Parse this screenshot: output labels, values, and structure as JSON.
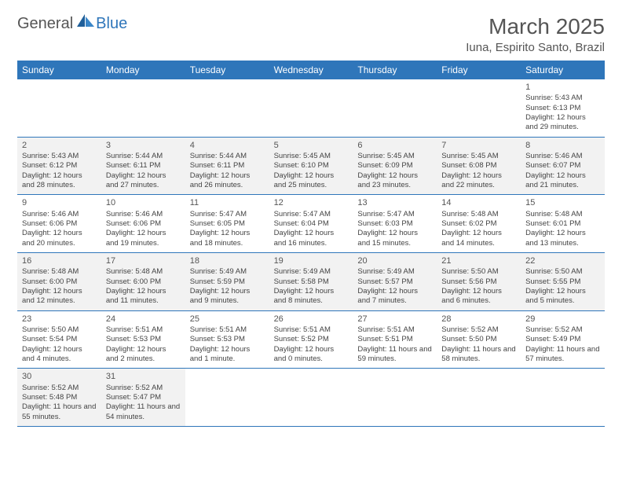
{
  "logo": {
    "text1": "General",
    "text2": "Blue"
  },
  "colors": {
    "header_blue": "#2f76ba",
    "shade_gray": "#f2f2f2",
    "text_gray": "#555555"
  },
  "title": "March 2025",
  "location": "Iuna, Espirito Santo, Brazil",
  "dayHeaders": [
    "Sunday",
    "Monday",
    "Tuesday",
    "Wednesday",
    "Thursday",
    "Friday",
    "Saturday"
  ],
  "weeks": [
    [
      {
        "blank": true
      },
      {
        "blank": true
      },
      {
        "blank": true
      },
      {
        "blank": true
      },
      {
        "blank": true
      },
      {
        "blank": true
      },
      {
        "day": "1",
        "sunrise": "Sunrise: 5:43 AM",
        "sunset": "Sunset: 6:13 PM",
        "daylight": "Daylight: 12 hours and 29 minutes."
      }
    ],
    [
      {
        "day": "2",
        "sunrise": "Sunrise: 5:43 AM",
        "sunset": "Sunset: 6:12 PM",
        "daylight": "Daylight: 12 hours and 28 minutes.",
        "shaded": true
      },
      {
        "day": "3",
        "sunrise": "Sunrise: 5:44 AM",
        "sunset": "Sunset: 6:11 PM",
        "daylight": "Daylight: 12 hours and 27 minutes.",
        "shaded": true
      },
      {
        "day": "4",
        "sunrise": "Sunrise: 5:44 AM",
        "sunset": "Sunset: 6:11 PM",
        "daylight": "Daylight: 12 hours and 26 minutes.",
        "shaded": true
      },
      {
        "day": "5",
        "sunrise": "Sunrise: 5:45 AM",
        "sunset": "Sunset: 6:10 PM",
        "daylight": "Daylight: 12 hours and 25 minutes.",
        "shaded": true
      },
      {
        "day": "6",
        "sunrise": "Sunrise: 5:45 AM",
        "sunset": "Sunset: 6:09 PM",
        "daylight": "Daylight: 12 hours and 23 minutes.",
        "shaded": true
      },
      {
        "day": "7",
        "sunrise": "Sunrise: 5:45 AM",
        "sunset": "Sunset: 6:08 PM",
        "daylight": "Daylight: 12 hours and 22 minutes.",
        "shaded": true
      },
      {
        "day": "8",
        "sunrise": "Sunrise: 5:46 AM",
        "sunset": "Sunset: 6:07 PM",
        "daylight": "Daylight: 12 hours and 21 minutes.",
        "shaded": true
      }
    ],
    [
      {
        "day": "9",
        "sunrise": "Sunrise: 5:46 AM",
        "sunset": "Sunset: 6:06 PM",
        "daylight": "Daylight: 12 hours and 20 minutes."
      },
      {
        "day": "10",
        "sunrise": "Sunrise: 5:46 AM",
        "sunset": "Sunset: 6:06 PM",
        "daylight": "Daylight: 12 hours and 19 minutes."
      },
      {
        "day": "11",
        "sunrise": "Sunrise: 5:47 AM",
        "sunset": "Sunset: 6:05 PM",
        "daylight": "Daylight: 12 hours and 18 minutes."
      },
      {
        "day": "12",
        "sunrise": "Sunrise: 5:47 AM",
        "sunset": "Sunset: 6:04 PM",
        "daylight": "Daylight: 12 hours and 16 minutes."
      },
      {
        "day": "13",
        "sunrise": "Sunrise: 5:47 AM",
        "sunset": "Sunset: 6:03 PM",
        "daylight": "Daylight: 12 hours and 15 minutes."
      },
      {
        "day": "14",
        "sunrise": "Sunrise: 5:48 AM",
        "sunset": "Sunset: 6:02 PM",
        "daylight": "Daylight: 12 hours and 14 minutes."
      },
      {
        "day": "15",
        "sunrise": "Sunrise: 5:48 AM",
        "sunset": "Sunset: 6:01 PM",
        "daylight": "Daylight: 12 hours and 13 minutes."
      }
    ],
    [
      {
        "day": "16",
        "sunrise": "Sunrise: 5:48 AM",
        "sunset": "Sunset: 6:00 PM",
        "daylight": "Daylight: 12 hours and 12 minutes.",
        "shaded": true
      },
      {
        "day": "17",
        "sunrise": "Sunrise: 5:48 AM",
        "sunset": "Sunset: 6:00 PM",
        "daylight": "Daylight: 12 hours and 11 minutes.",
        "shaded": true
      },
      {
        "day": "18",
        "sunrise": "Sunrise: 5:49 AM",
        "sunset": "Sunset: 5:59 PM",
        "daylight": "Daylight: 12 hours and 9 minutes.",
        "shaded": true
      },
      {
        "day": "19",
        "sunrise": "Sunrise: 5:49 AM",
        "sunset": "Sunset: 5:58 PM",
        "daylight": "Daylight: 12 hours and 8 minutes.",
        "shaded": true
      },
      {
        "day": "20",
        "sunrise": "Sunrise: 5:49 AM",
        "sunset": "Sunset: 5:57 PM",
        "daylight": "Daylight: 12 hours and 7 minutes.",
        "shaded": true
      },
      {
        "day": "21",
        "sunrise": "Sunrise: 5:50 AM",
        "sunset": "Sunset: 5:56 PM",
        "daylight": "Daylight: 12 hours and 6 minutes.",
        "shaded": true
      },
      {
        "day": "22",
        "sunrise": "Sunrise: 5:50 AM",
        "sunset": "Sunset: 5:55 PM",
        "daylight": "Daylight: 12 hours and 5 minutes.",
        "shaded": true
      }
    ],
    [
      {
        "day": "23",
        "sunrise": "Sunrise: 5:50 AM",
        "sunset": "Sunset: 5:54 PM",
        "daylight": "Daylight: 12 hours and 4 minutes."
      },
      {
        "day": "24",
        "sunrise": "Sunrise: 5:51 AM",
        "sunset": "Sunset: 5:53 PM",
        "daylight": "Daylight: 12 hours and 2 minutes."
      },
      {
        "day": "25",
        "sunrise": "Sunrise: 5:51 AM",
        "sunset": "Sunset: 5:53 PM",
        "daylight": "Daylight: 12 hours and 1 minute."
      },
      {
        "day": "26",
        "sunrise": "Sunrise: 5:51 AM",
        "sunset": "Sunset: 5:52 PM",
        "daylight": "Daylight: 12 hours and 0 minutes."
      },
      {
        "day": "27",
        "sunrise": "Sunrise: 5:51 AM",
        "sunset": "Sunset: 5:51 PM",
        "daylight": "Daylight: 11 hours and 59 minutes."
      },
      {
        "day": "28",
        "sunrise": "Sunrise: 5:52 AM",
        "sunset": "Sunset: 5:50 PM",
        "daylight": "Daylight: 11 hours and 58 minutes."
      },
      {
        "day": "29",
        "sunrise": "Sunrise: 5:52 AM",
        "sunset": "Sunset: 5:49 PM",
        "daylight": "Daylight: 11 hours and 57 minutes."
      }
    ],
    [
      {
        "day": "30",
        "sunrise": "Sunrise: 5:52 AM",
        "sunset": "Sunset: 5:48 PM",
        "daylight": "Daylight: 11 hours and 55 minutes.",
        "shaded": true
      },
      {
        "day": "31",
        "sunrise": "Sunrise: 5:52 AM",
        "sunset": "Sunset: 5:47 PM",
        "daylight": "Daylight: 11 hours and 54 minutes.",
        "shaded": true
      },
      {
        "blank": true
      },
      {
        "blank": true
      },
      {
        "blank": true
      },
      {
        "blank": true
      },
      {
        "blank": true
      }
    ]
  ]
}
